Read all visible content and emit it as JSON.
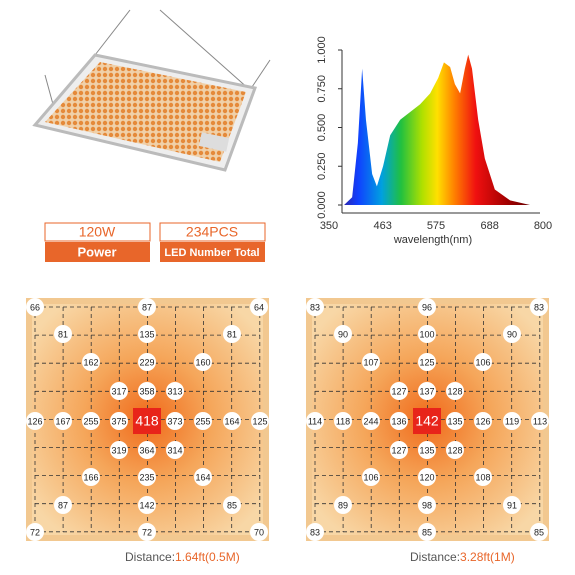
{
  "badges": [
    {
      "value": "120W",
      "label": "Power"
    },
    {
      "value": "234PCS",
      "label": "LED Number Total"
    }
  ],
  "chart_data": {
    "type": "area",
    "x_label": "wavelength(nm)",
    "x": [
      388,
      405,
      417,
      426,
      434,
      447,
      457,
      470,
      485,
      506,
      527,
      548,
      569,
      586,
      598,
      611,
      621,
      632,
      642,
      649,
      657,
      670,
      684,
      705,
      737,
      779
    ],
    "values": [
      0,
      0.05,
      0.4,
      0.88,
      0.55,
      0.2,
      0.12,
      0.25,
      0.45,
      0.55,
      0.6,
      0.65,
      0.72,
      0.82,
      0.92,
      0.89,
      0.78,
      0.72,
      0.88,
      0.97,
      0.88,
      0.55,
      0.3,
      0.1,
      0.03,
      0
    ],
    "xlim": [
      350,
      800
    ],
    "xticks": [
      350,
      463,
      575,
      688,
      800
    ],
    "ylim": [
      0,
      1
    ],
    "yticks": [
      {
        "value": 0,
        "label": "0.000"
      },
      {
        "value": 0.25,
        "label": "0.250"
      },
      {
        "value": 0.5,
        "label": "0.500"
      },
      {
        "value": 0.75,
        "label": "0.750"
      },
      {
        "value": 1,
        "label": "1.000"
      }
    ]
  },
  "grids": [
    {
      "values": [
        66,
        87,
        64,
        81,
        135,
        81,
        162,
        229,
        160,
        317,
        358,
        313,
        126,
        167,
        255,
        375,
        418,
        373,
        255,
        164,
        125,
        319,
        364,
        314,
        166,
        235,
        164,
        87,
        142,
        85,
        72,
        72,
        70
      ],
      "caption_label": "Distance:",
      "caption_value": "1.64ft(0.5M)"
    },
    {
      "values": [
        83,
        96,
        83,
        90,
        100,
        90,
        107,
        125,
        106,
        127,
        137,
        128,
        114,
        118,
        244,
        136,
        142,
        135,
        126,
        119,
        113,
        127,
        135,
        128,
        106,
        120,
        108,
        89,
        98,
        91,
        83,
        85,
        85
      ],
      "caption_label": "Distance:",
      "caption_value": "3.28ft(1M)"
    }
  ]
}
